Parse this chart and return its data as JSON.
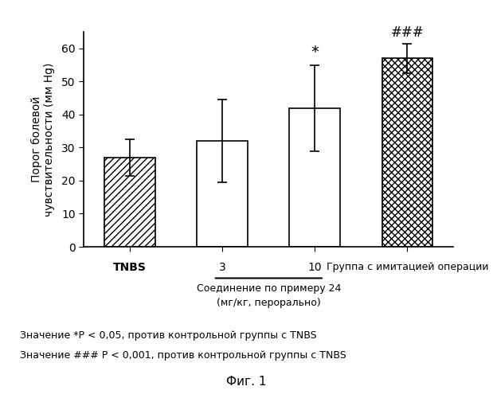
{
  "values": [
    27.0,
    32.0,
    42.0,
    57.0
  ],
  "errors": [
    5.5,
    12.5,
    13.0,
    4.5
  ],
  "ylabel_line1": "Порог болевой",
  "ylabel_line2": "чувствительности (мм Hg)",
  "ylim": [
    0,
    65
  ],
  "yticks": [
    0,
    10,
    20,
    30,
    40,
    50,
    60
  ],
  "xlabels": [
    "TNBS",
    "3",
    "10",
    "Группа с имитацией операции"
  ],
  "bracket_text_line1": "Соединение по примеру 24",
  "bracket_text_line2": "(мг/кг, перорально)",
  "note1": "Значение *P < 0,05, против контрольной группы с TNBS",
  "note2": "Значение ### P < 0,001, против контрольной группы с TNBS",
  "fig_label": "Фиг. 1",
  "hatch_patterns": [
    "////",
    "",
    "",
    "xxxx"
  ],
  "bar_edge_color": "black",
  "bar_width": 0.55,
  "background": "#ffffff"
}
